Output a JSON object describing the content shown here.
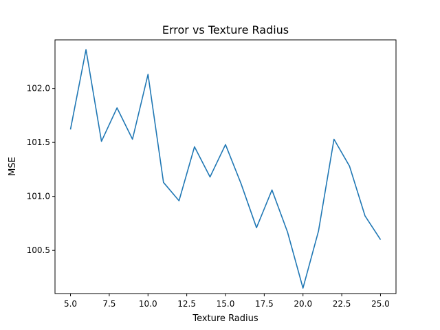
{
  "chart_data": {
    "type": "line",
    "title": "Error vs Texture Radius",
    "xlabel": "Texture Radius",
    "ylabel": "MSE",
    "xlim": [
      4.0,
      26.0
    ],
    "ylim": [
      100.1,
      102.45
    ],
    "xticks": [
      5.0,
      7.5,
      10.0,
      12.5,
      15.0,
      17.5,
      20.0,
      22.5,
      25.0
    ],
    "xtick_labels": [
      "5.0",
      "7.5",
      "10.0",
      "12.5",
      "15.0",
      "17.5",
      "20.0",
      "22.5",
      "25.0"
    ],
    "yticks": [
      100.5,
      101.0,
      101.5,
      102.0
    ],
    "ytick_labels": [
      "100.5",
      "101.0",
      "101.5",
      "102.0"
    ],
    "grid": false,
    "series": [
      {
        "color": "#1f77b4",
        "x": [
          5,
          6,
          7,
          8,
          9,
          10,
          11,
          12,
          13,
          14,
          15,
          16,
          17,
          18,
          19,
          20,
          21,
          22,
          23,
          24,
          25
        ],
        "y": [
          101.62,
          102.36,
          101.51,
          101.82,
          101.53,
          102.13,
          101.13,
          100.96,
          101.46,
          101.18,
          101.48,
          101.12,
          100.71,
          101.06,
          100.67,
          100.15,
          100.68,
          101.53,
          101.28,
          100.82,
          100.6
        ]
      }
    ]
  }
}
